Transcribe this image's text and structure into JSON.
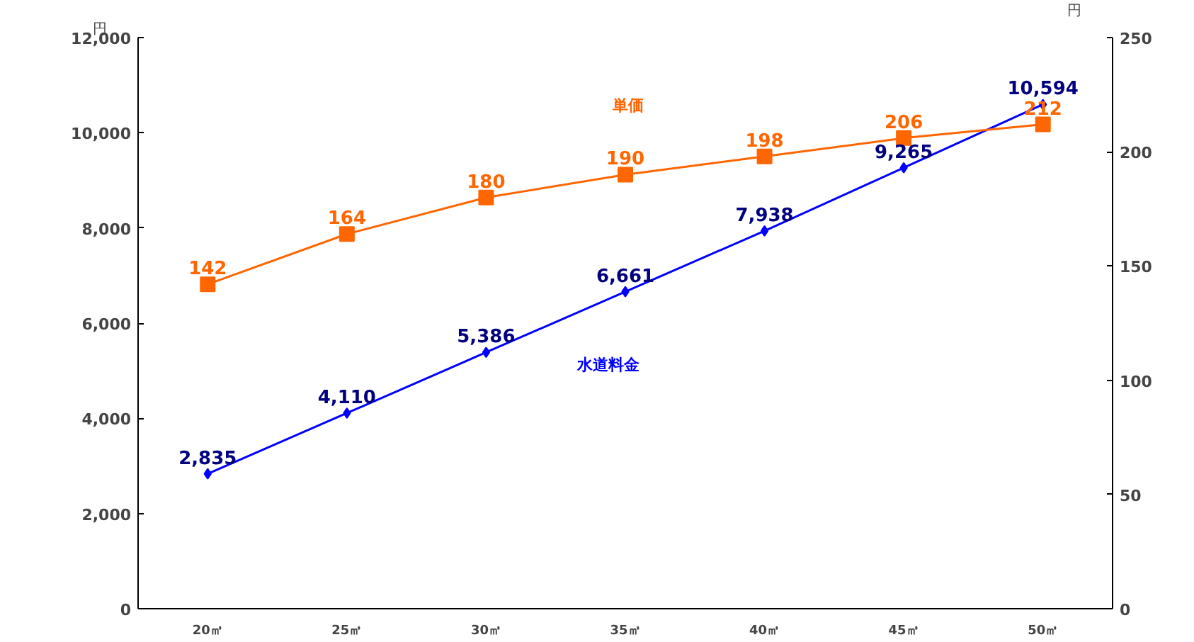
{
  "chart_data": {
    "type": "line",
    "categories": [
      "20㎥",
      "25㎥",
      "30㎥",
      "35㎥",
      "40㎥",
      "45㎥",
      "50㎥"
    ],
    "series": [
      {
        "name": "水道料金",
        "color": "#0000ff",
        "marker": "diamond",
        "values": [
          2835,
          4110,
          5386,
          6661,
          7938,
          9265,
          10594
        ],
        "value_labels": [
          "2,835",
          "4,110",
          "5,386",
          "6,661",
          "7,938",
          "9,265",
          "10,594"
        ]
      },
      {
        "name": "単価",
        "color": "#ff6600",
        "marker": "square",
        "axis": "y2",
        "values": [
          142,
          164,
          180,
          190,
          198,
          206,
          212
        ]
      }
    ],
    "ylabel": "円",
    "y2label": "円",
    "ylim": [
      0,
      12000
    ],
    "yticks": [
      0,
      {
        "value": 2000,
        "label": "2,000"
      },
      {
        "value": 4000,
        "label": "4,000"
      },
      {
        "value": 6000,
        "label": "6,000"
      },
      {
        "value": 8000,
        "label": "8,000"
      },
      {
        "value": 10000,
        "label": "10,000"
      },
      {
        "value": 12000,
        "label": "12,000"
      }
    ],
    "y2lim": [
      0,
      250
    ],
    "y2ticks": [
      0,
      50,
      100,
      150,
      200,
      250
    ],
    "data_labels": true,
    "grid": false
  }
}
